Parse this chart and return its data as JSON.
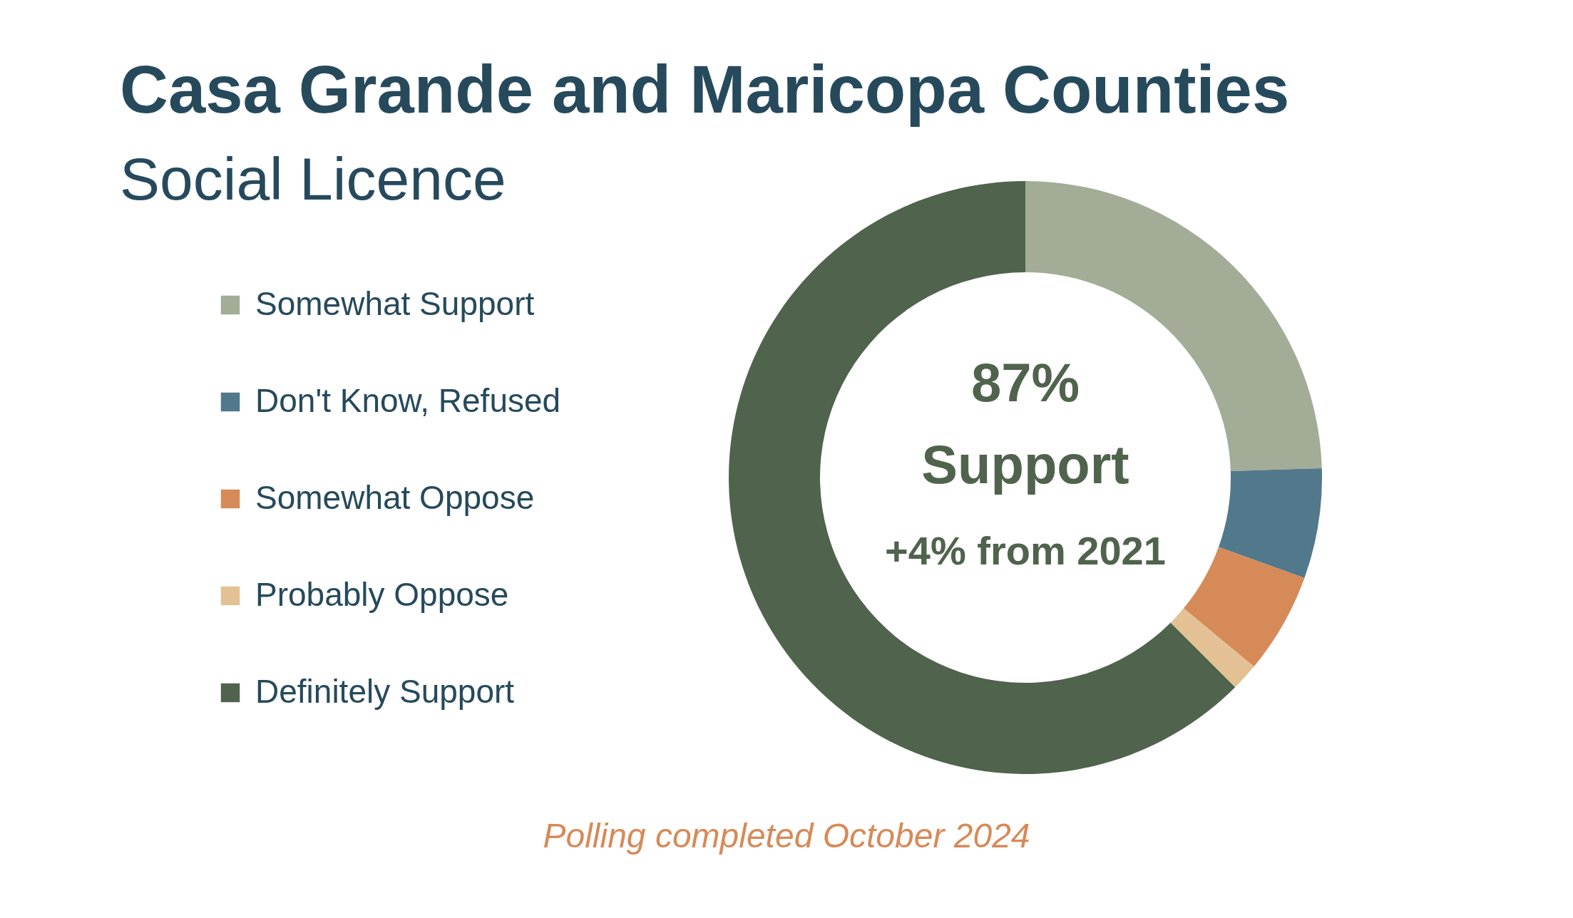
{
  "chart_data": {
    "type": "donut",
    "title": "Casa Grande and Maricopa Counties",
    "subtitle": "Social Licence",
    "categories": [
      "Somewhat Support",
      "Don't Know, Refused",
      "Somewhat Oppose",
      "Probably Oppose",
      "Definitely Support"
    ],
    "values": [
      24.5,
      6,
      5.5,
      1.5,
      62.5
    ],
    "colors": [
      "#a3ac97",
      "#52788c",
      "#d68a58",
      "#e3c195",
      "#50634d"
    ],
    "legend": "left",
    "annotations": [
      "87%",
      "Support",
      "+4% from 2021",
      "Polling completed October 2024"
    ]
  }
}
